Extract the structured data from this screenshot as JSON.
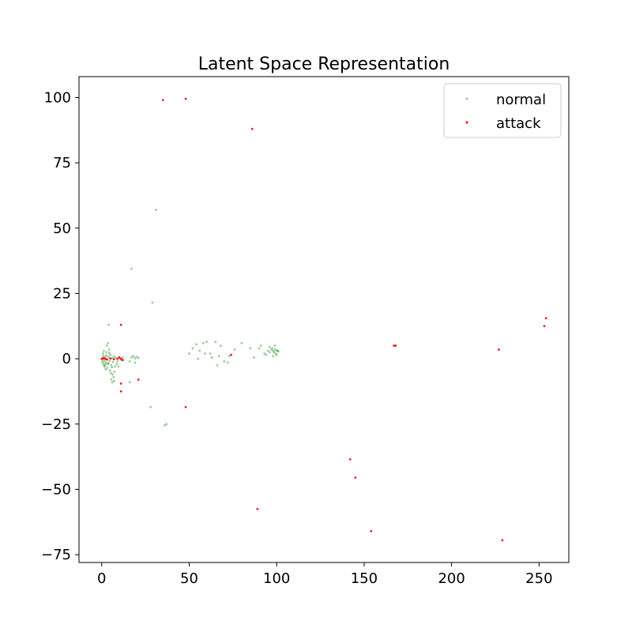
{
  "chart_data": {
    "type": "scatter",
    "title": "Latent Space Representation",
    "xlabel": "",
    "ylabel": "",
    "xlim": [
      -13,
      267
    ],
    "ylim": [
      -78,
      108
    ],
    "xticks": [
      0,
      50,
      100,
      150,
      200,
      250
    ],
    "yticks": [
      -75,
      -50,
      -25,
      0,
      25,
      50,
      75,
      100
    ],
    "grid": false,
    "legend": "top-right",
    "series": [
      {
        "name": "normal",
        "color": "#008000",
        "alpha": 0.4,
        "points": [
          [
            0,
            0
          ],
          [
            0.5,
            -0.5
          ],
          [
            1,
            0.3
          ],
          [
            1.5,
            -1
          ],
          [
            2,
            0.8
          ],
          [
            2.5,
            -1.5
          ],
          [
            3,
            1.2
          ],
          [
            3.5,
            -2
          ],
          [
            4,
            0.5
          ],
          [
            4.5,
            -0.8
          ],
          [
            5,
            1.5
          ],
          [
            5.5,
            -2.5
          ],
          [
            6,
            0.2
          ],
          [
            6.5,
            -1.2
          ],
          [
            7,
            0.9
          ],
          [
            7.5,
            -3
          ],
          [
            8,
            0.4
          ],
          [
            9,
            -1
          ],
          [
            10,
            0.6
          ],
          [
            11,
            -0.4
          ],
          [
            0.8,
            2
          ],
          [
            1.2,
            3
          ],
          [
            1.8,
            -3
          ],
          [
            2.2,
            -4
          ],
          [
            2.8,
            2.5
          ],
          [
            3.2,
            -3.5
          ],
          [
            4.2,
            3.5
          ],
          [
            4.8,
            -4.5
          ],
          [
            5.2,
            -5.5
          ],
          [
            6.2,
            -6
          ],
          [
            6.8,
            -7
          ],
          [
            7.2,
            -5
          ],
          [
            3,
            5
          ],
          [
            3.5,
            6
          ],
          [
            4,
            13
          ],
          [
            5.5,
            -8
          ],
          [
            6,
            -9
          ],
          [
            7,
            -8.5
          ],
          [
            1,
            -2
          ],
          [
            2,
            -2.2
          ],
          [
            0.3,
            -1.3
          ],
          [
            0.7,
            1.1
          ],
          [
            1.3,
            -2.7
          ],
          [
            2.6,
            -0.3
          ],
          [
            3.8,
            -1.7
          ],
          [
            4.4,
            2.2
          ],
          [
            5.8,
            -3.3
          ],
          [
            8.5,
            -2
          ],
          [
            9.5,
            -3
          ],
          [
            12,
            0.5
          ],
          [
            17,
            0.5
          ],
          [
            18,
            1
          ],
          [
            19,
            0.2
          ],
          [
            20,
            0.7
          ],
          [
            21,
            0.3
          ],
          [
            16,
            -1
          ],
          [
            19,
            -1.5
          ],
          [
            17,
            34.5
          ],
          [
            31,
            57
          ],
          [
            29,
            21.5
          ],
          [
            28,
            -18.5
          ],
          [
            36,
            -25.5
          ],
          [
            37,
            -25
          ],
          [
            16,
            -9
          ],
          [
            50,
            2
          ],
          [
            52,
            4
          ],
          [
            54,
            5.5
          ],
          [
            55,
            0
          ],
          [
            56,
            3
          ],
          [
            58,
            6
          ],
          [
            60,
            6.5
          ],
          [
            59,
            2
          ],
          [
            62,
            2
          ],
          [
            63,
            0.5
          ],
          [
            65,
            6.5
          ],
          [
            66,
            -2.5
          ],
          [
            67,
            1
          ],
          [
            68,
            5
          ],
          [
            70,
            -1
          ],
          [
            72,
            -1.5
          ],
          [
            73,
            1
          ],
          [
            76,
            3.5
          ],
          [
            80,
            6
          ],
          [
            85,
            4
          ],
          [
            87,
            0.5
          ],
          [
            90,
            4
          ],
          [
            91,
            5
          ],
          [
            93,
            2
          ],
          [
            94,
            1.5
          ],
          [
            95,
            3
          ],
          [
            96,
            2.5
          ],
          [
            97,
            3.5
          ],
          [
            97.5,
            4
          ],
          [
            98,
            3
          ],
          [
            98.5,
            2.5
          ],
          [
            99,
            3.5
          ],
          [
            99.5,
            2
          ],
          [
            100,
            3
          ],
          [
            100.5,
            3.2
          ],
          [
            101,
            2.8
          ],
          [
            96,
            4.5
          ],
          [
            98,
            1
          ],
          [
            99,
            5
          ],
          [
            100,
            1.5
          ]
        ]
      },
      {
        "name": "attack",
        "color": "#ff0000",
        "alpha": 0.9,
        "points": [
          [
            35,
            99
          ],
          [
            48,
            99.5
          ],
          [
            86,
            88
          ],
          [
            11,
            13
          ],
          [
            11,
            -9.5
          ],
          [
            11,
            -12.5
          ],
          [
            21,
            -8
          ],
          [
            48,
            -18.5
          ],
          [
            74,
            1.5
          ],
          [
            167,
            5
          ],
          [
            168,
            5
          ],
          [
            227,
            3.5
          ],
          [
            253,
            12.5
          ],
          [
            254,
            15.5
          ],
          [
            142,
            -38.5
          ],
          [
            145,
            -45.5
          ],
          [
            89,
            -57.5
          ],
          [
            154,
            -66
          ],
          [
            229,
            -69.5
          ],
          [
            9,
            0
          ],
          [
            10,
            0.5
          ],
          [
            11,
            0
          ],
          [
            12,
            -0.5
          ],
          [
            2,
            0
          ],
          [
            3,
            -0.3
          ],
          [
            1,
            0.2
          ],
          [
            0,
            0
          ],
          [
            5,
            0.1
          ],
          [
            7,
            -0.2
          ]
        ]
      }
    ]
  }
}
